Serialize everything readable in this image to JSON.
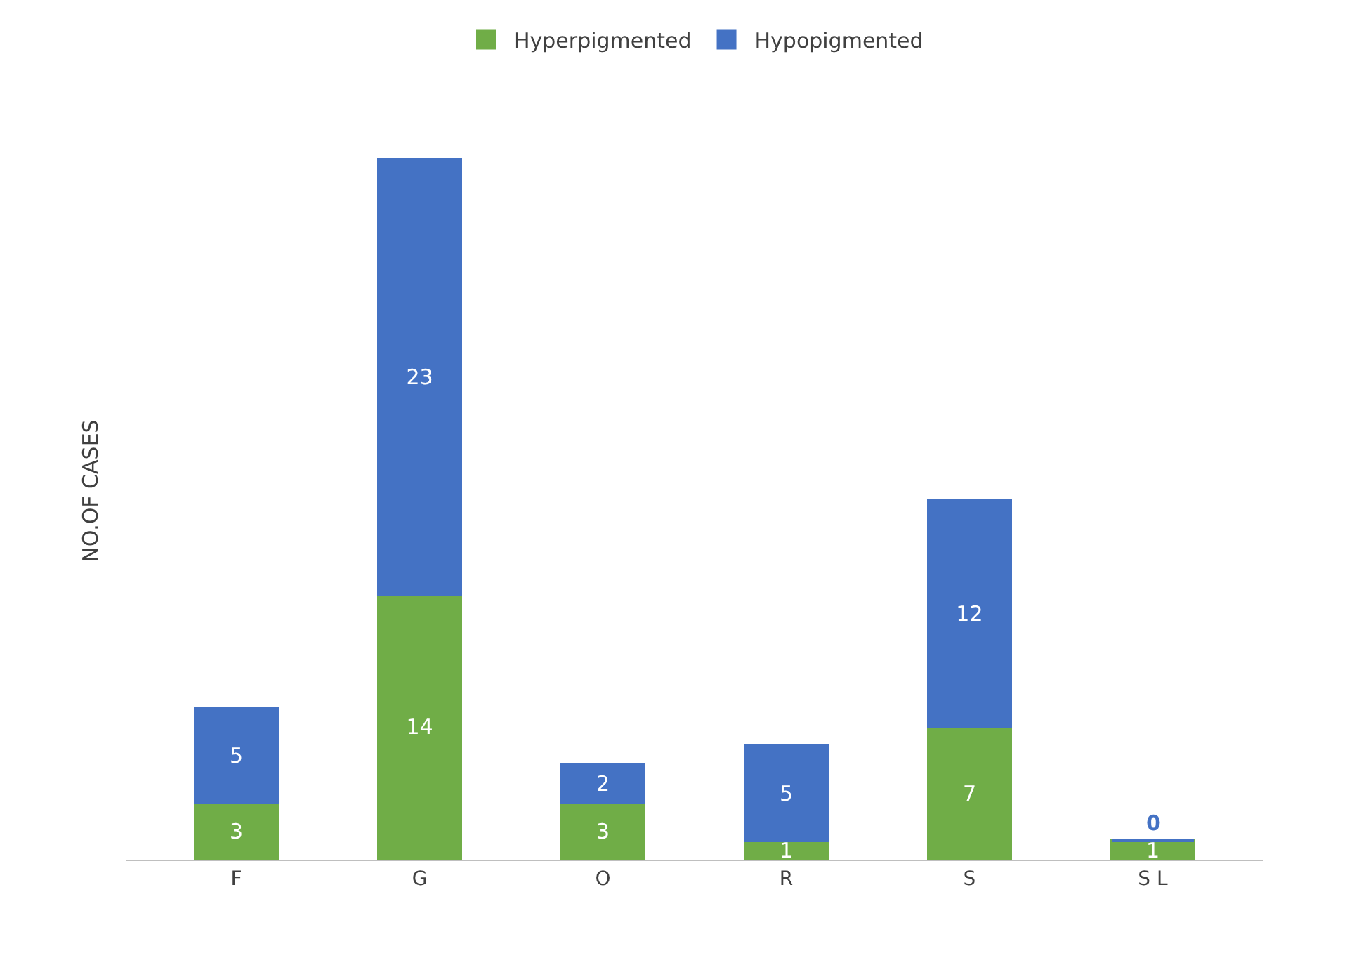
{
  "chart_data": {
    "type": "bar",
    "stacked": true,
    "ylabel": "NO.OF CASES",
    "categories": [
      "F",
      "G",
      "O",
      "R",
      "S",
      "S L"
    ],
    "series": [
      {
        "name": "Hyperpigmented",
        "color": "#70ad47",
        "values": [
          3,
          14,
          3,
          1,
          7,
          1
        ]
      },
      {
        "name": "Hypopigmented",
        "color": "#4472c4",
        "values": [
          5,
          23,
          2,
          5,
          12,
          0
        ]
      }
    ],
    "data_labels": true,
    "legend": "top",
    "tick_labels": "x"
  }
}
